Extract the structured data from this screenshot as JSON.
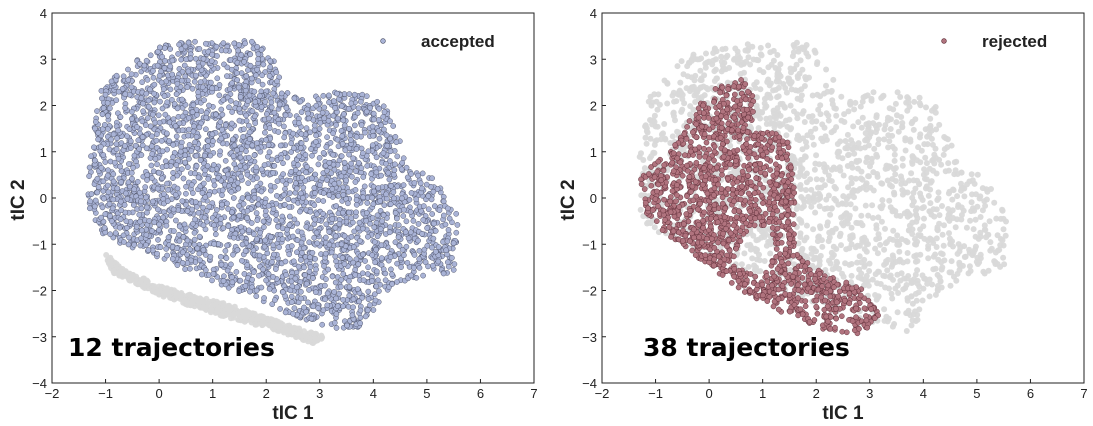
{
  "chart_data": [
    {
      "type": "scatter",
      "xlabel": "tIC 1",
      "ylabel": "tIC 2",
      "xlim": [
        -2,
        7
      ],
      "ylim": [
        -4,
        4
      ],
      "xticks": [
        "−2",
        "−1",
        "0",
        "1",
        "2",
        "3",
        "4",
        "5",
        "6",
        "7"
      ],
      "yticks": [
        "−4",
        "−3",
        "−2",
        "−1",
        "0",
        "1",
        "2",
        "3",
        "4"
      ],
      "legend_position": "top-right",
      "grid": false,
      "annotation": "12 trajectories",
      "series": [
        {
          "name": "accepted",
          "color": "#a9b3d6",
          "edge_color": "#4a4e63",
          "region": [
            [
              -1.35,
              -0.3
            ],
            [
              -1.3,
              0.9
            ],
            [
              -1.1,
              2.3
            ],
            [
              -0.5,
              3.0
            ],
            [
              0.0,
              3.3
            ],
            [
              0.6,
              3.4
            ],
            [
              1.2,
              3.35
            ],
            [
              1.7,
              3.45
            ],
            [
              2.1,
              3.1
            ],
            [
              2.3,
              2.6
            ],
            [
              2.6,
              2.1
            ],
            [
              3.1,
              2.3
            ],
            [
              3.6,
              2.3
            ],
            [
              4.2,
              2.1
            ],
            [
              4.5,
              1.3
            ],
            [
              4.7,
              0.6
            ],
            [
              5.1,
              0.5
            ],
            [
              5.6,
              -0.4
            ],
            [
              5.5,
              -1.6
            ],
            [
              5.0,
              -1.7
            ],
            [
              4.3,
              -2.0
            ],
            [
              4.0,
              -2.5
            ],
            [
              3.7,
              -2.9
            ],
            [
              3.2,
              -2.8
            ],
            [
              2.4,
              -2.5
            ],
            [
              1.4,
              -2.0
            ],
            [
              0.6,
              -1.6
            ],
            [
              -0.2,
              -1.2
            ],
            [
              -0.9,
              -0.9
            ],
            [
              -1.3,
              -0.6
            ]
          ],
          "background_region": [
            [
              -1.0,
              -1.2
            ],
            [
              -0.6,
              -1.6
            ],
            [
              0.3,
              -2.0
            ],
            [
              1.3,
              -2.3
            ],
            [
              2.3,
              -2.7
            ],
            [
              3.1,
              -3.0
            ],
            [
              2.9,
              -3.15
            ],
            [
              2.0,
              -2.8
            ],
            [
              1.0,
              -2.5
            ],
            [
              0.0,
              -2.1
            ],
            [
              -0.9,
              -1.6
            ]
          ]
        }
      ]
    },
    {
      "type": "scatter",
      "xlabel": "tIC 1",
      "ylabel": "tIC 2",
      "xlim": [
        -2,
        7
      ],
      "ylim": [
        -4,
        4
      ],
      "xticks": [
        "−2",
        "−1",
        "0",
        "1",
        "2",
        "3",
        "4",
        "5",
        "6",
        "7"
      ],
      "yticks": [
        "−4",
        "−3",
        "−2",
        "−1",
        "0",
        "1",
        "2",
        "3",
        "4"
      ],
      "legend_position": "top-right",
      "grid": false,
      "annotation": "38 trajectories",
      "series": [
        {
          "name": "rejected",
          "color": "#b0737e",
          "edge_color": "#5a2a34",
          "region": [
            [
              -1.3,
              0.4
            ],
            [
              -1.0,
              0.8
            ],
            [
              -0.6,
              1.2
            ],
            [
              -0.2,
              2.0
            ],
            [
              0.2,
              2.45
            ],
            [
              0.6,
              2.6
            ],
            [
              0.85,
              2.3
            ],
            [
              0.8,
              1.4
            ],
            [
              1.2,
              1.5
            ],
            [
              1.5,
              1.2
            ],
            [
              1.6,
              0.0
            ],
            [
              1.6,
              -1.2
            ],
            [
              2.2,
              -1.6
            ],
            [
              2.8,
              -1.9
            ],
            [
              3.2,
              -2.5
            ],
            [
              2.9,
              -2.95
            ],
            [
              2.2,
              -2.9
            ],
            [
              1.4,
              -2.5
            ],
            [
              0.6,
              -2.0
            ],
            [
              -0.2,
              -1.3
            ],
            [
              -0.8,
              -0.8
            ],
            [
              -1.2,
              -0.3
            ]
          ],
          "hole": [
            [
              0.4,
              -1.4
            ],
            [
              0.8,
              -0.6
            ],
            [
              1.1,
              -0.6
            ],
            [
              1.2,
              -1.3
            ],
            [
              0.9,
              -1.6
            ],
            [
              0.5,
              -1.5
            ]
          ],
          "background_region": [
            [
              -1.35,
              -0.3
            ],
            [
              -1.3,
              0.9
            ],
            [
              -1.1,
              2.3
            ],
            [
              -0.5,
              3.0
            ],
            [
              0.0,
              3.3
            ],
            [
              0.6,
              3.4
            ],
            [
              1.2,
              3.35
            ],
            [
              1.7,
              3.45
            ],
            [
              2.1,
              3.1
            ],
            [
              2.3,
              2.6
            ],
            [
              2.6,
              2.1
            ],
            [
              3.1,
              2.3
            ],
            [
              3.6,
              2.3
            ],
            [
              4.2,
              2.1
            ],
            [
              4.5,
              1.3
            ],
            [
              4.7,
              0.6
            ],
            [
              5.1,
              0.5
            ],
            [
              5.6,
              -0.4
            ],
            [
              5.5,
              -1.6
            ],
            [
              5.0,
              -1.7
            ],
            [
              4.3,
              -2.0
            ],
            [
              4.0,
              -2.5
            ],
            [
              3.7,
              -2.9
            ],
            [
              3.2,
              -2.8
            ],
            [
              2.4,
              -2.5
            ],
            [
              1.4,
              -2.0
            ],
            [
              0.6,
              -1.6
            ],
            [
              -0.2,
              -1.2
            ],
            [
              -0.9,
              -0.9
            ],
            [
              -1.3,
              -0.6
            ]
          ]
        }
      ]
    }
  ]
}
